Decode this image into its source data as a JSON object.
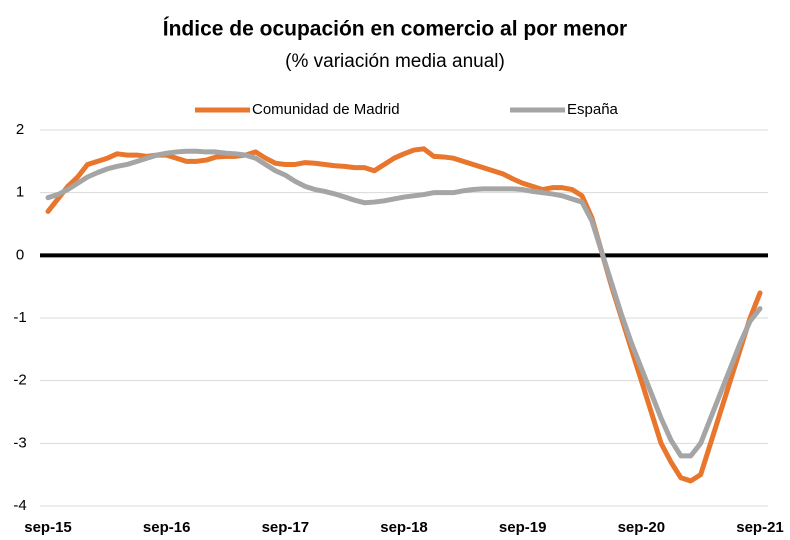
{
  "chart_data": {
    "type": "line",
    "title": "Índice de ocupación en comercio al por menor",
    "subtitle": "(% variación media anual)",
    "categories": [
      "sep-15",
      null,
      null,
      null,
      null,
      null,
      null,
      null,
      null,
      null,
      null,
      null,
      "sep-16",
      null,
      null,
      null,
      null,
      null,
      null,
      null,
      null,
      null,
      null,
      null,
      "sep-17",
      null,
      null,
      null,
      null,
      null,
      null,
      null,
      null,
      null,
      null,
      null,
      "sep-18",
      null,
      null,
      null,
      null,
      null,
      null,
      null,
      null,
      null,
      null,
      null,
      "sep-19",
      null,
      null,
      null,
      null,
      null,
      null,
      null,
      null,
      null,
      null,
      null,
      "sep-20",
      null,
      null,
      null,
      null,
      null,
      null,
      null,
      null,
      null,
      null,
      null,
      "sep-21"
    ],
    "series": [
      {
        "name": "Comunidad de Madrid",
        "color": "#e8762d",
        "values": [
          0.7,
          0.9,
          1.1,
          1.25,
          1.45,
          1.5,
          1.55,
          1.62,
          1.6,
          1.6,
          1.58,
          1.6,
          1.6,
          1.55,
          1.5,
          1.5,
          1.52,
          1.57,
          1.58,
          1.58,
          1.6,
          1.65,
          1.55,
          1.47,
          1.45,
          1.45,
          1.48,
          1.47,
          1.45,
          1.43,
          1.42,
          1.4,
          1.4,
          1.35,
          1.45,
          1.55,
          1.62,
          1.68,
          1.7,
          1.58,
          1.57,
          1.55,
          1.5,
          1.45,
          1.4,
          1.35,
          1.3,
          1.22,
          1.15,
          1.1,
          1.05,
          1.08,
          1.08,
          1.05,
          0.95,
          0.6,
          0.05,
          -0.5,
          -1.0,
          -1.5,
          -2.0,
          -2.5,
          -3.0,
          -3.3,
          -3.55,
          -3.6,
          -3.5,
          -3.0,
          -2.5,
          -2.0,
          -1.5,
          -1.0,
          -0.6
        ]
      },
      {
        "name": "España",
        "color": "#a5a5a5",
        "values": [
          0.92,
          0.97,
          1.05,
          1.15,
          1.25,
          1.32,
          1.38,
          1.42,
          1.45,
          1.5,
          1.55,
          1.6,
          1.63,
          1.65,
          1.66,
          1.66,
          1.65,
          1.65,
          1.63,
          1.62,
          1.6,
          1.55,
          1.45,
          1.35,
          1.28,
          1.18,
          1.1,
          1.05,
          1.02,
          0.98,
          0.93,
          0.88,
          0.84,
          0.85,
          0.87,
          0.9,
          0.93,
          0.95,
          0.97,
          1.0,
          1.0,
          1.0,
          1.03,
          1.05,
          1.06,
          1.06,
          1.06,
          1.06,
          1.05,
          1.02,
          1.0,
          0.98,
          0.95,
          0.9,
          0.85,
          0.55,
          0.05,
          -0.45,
          -0.95,
          -1.4,
          -1.8,
          -2.2,
          -2.6,
          -2.95,
          -3.2,
          -3.2,
          -3.0,
          -2.6,
          -2.2,
          -1.8,
          -1.4,
          -1.05,
          -0.85
        ]
      }
    ],
    "ylim": [
      -4,
      2
    ],
    "yticks": [
      -4,
      -3,
      -2,
      -1,
      0,
      1,
      2
    ],
    "grid": true,
    "legend": "top"
  }
}
